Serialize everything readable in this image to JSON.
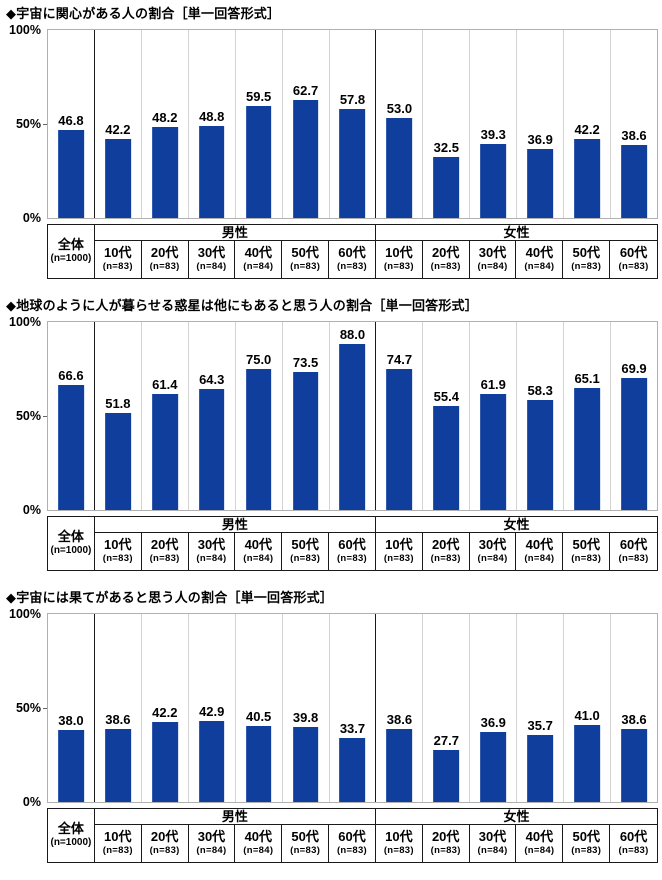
{
  "style": {
    "bar_color": "#0f3e9d",
    "plot_border_color": "#b0b0b0",
    "light_grid_color": "#d4d4d4",
    "dark_separator_color": "#1a1a1a",
    "text_color": "#000000"
  },
  "chart_data": [
    {
      "type": "bar",
      "title": "◆宇宙に関心がある人の割合［単一回答形式］",
      "unit": "%",
      "ylim": [
        0,
        100
      ],
      "y_tick_labels": [
        "100%",
        "50%",
        "0%"
      ],
      "legend": "none",
      "total": {
        "label": "全体",
        "n_label": "(n=1000)",
        "value": 46.8
      },
      "groups": [
        {
          "label": "男性",
          "categories": [
            "10代",
            "20代",
            "30代",
            "40代",
            "50代",
            "60代"
          ],
          "n_labels": [
            "(n=83)",
            "(n=83)",
            "(n=84)",
            "(n=84)",
            "(n=83)",
            "(n=83)"
          ],
          "values": [
            42.2,
            48.2,
            48.8,
            59.5,
            62.7,
            57.8
          ]
        },
        {
          "label": "女性",
          "categories": [
            "10代",
            "20代",
            "30代",
            "40代",
            "50代",
            "60代"
          ],
          "n_labels": [
            "(n=83)",
            "(n=83)",
            "(n=84)",
            "(n=84)",
            "(n=83)",
            "(n=83)"
          ],
          "values": [
            53.0,
            32.5,
            39.3,
            36.9,
            42.2,
            38.6
          ]
        }
      ]
    },
    {
      "type": "bar",
      "title": "◆地球のように人が暮らせる惑星は他にもあると思う人の割合［単一回答形式］",
      "unit": "%",
      "ylim": [
        0,
        100
      ],
      "y_tick_labels": [
        "100%",
        "50%",
        "0%"
      ],
      "legend": "none",
      "total": {
        "label": "全体",
        "n_label": "(n=1000)",
        "value": 66.6
      },
      "groups": [
        {
          "label": "男性",
          "categories": [
            "10代",
            "20代",
            "30代",
            "40代",
            "50代",
            "60代"
          ],
          "n_labels": [
            "(n=83)",
            "(n=83)",
            "(n=84)",
            "(n=84)",
            "(n=83)",
            "(n=83)"
          ],
          "values": [
            51.8,
            61.4,
            64.3,
            75.0,
            73.5,
            88.0
          ]
        },
        {
          "label": "女性",
          "categories": [
            "10代",
            "20代",
            "30代",
            "40代",
            "50代",
            "60代"
          ],
          "n_labels": [
            "(n=83)",
            "(n=83)",
            "(n=84)",
            "(n=84)",
            "(n=83)",
            "(n=83)"
          ],
          "values": [
            74.7,
            55.4,
            61.9,
            58.3,
            65.1,
            69.9
          ]
        }
      ]
    },
    {
      "type": "bar",
      "title": "◆宇宙には果てがあると思う人の割合［単一回答形式］",
      "unit": "%",
      "ylim": [
        0,
        100
      ],
      "y_tick_labels": [
        "100%",
        "50%",
        "0%"
      ],
      "legend": "none",
      "total": {
        "label": "全体",
        "n_label": "(n=1000)",
        "value": 38.0
      },
      "groups": [
        {
          "label": "男性",
          "categories": [
            "10代",
            "20代",
            "30代",
            "40代",
            "50代",
            "60代"
          ],
          "n_labels": [
            "(n=83)",
            "(n=83)",
            "(n=84)",
            "(n=84)",
            "(n=83)",
            "(n=83)"
          ],
          "values": [
            38.6,
            42.2,
            42.9,
            40.5,
            39.8,
            33.7
          ]
        },
        {
          "label": "女性",
          "categories": [
            "10代",
            "20代",
            "30代",
            "40代",
            "50代",
            "60代"
          ],
          "n_labels": [
            "(n=83)",
            "(n=83)",
            "(n=84)",
            "(n=84)",
            "(n=83)",
            "(n=83)"
          ],
          "values": [
            38.6,
            27.7,
            36.9,
            35.7,
            41.0,
            38.6
          ]
        }
      ]
    }
  ]
}
